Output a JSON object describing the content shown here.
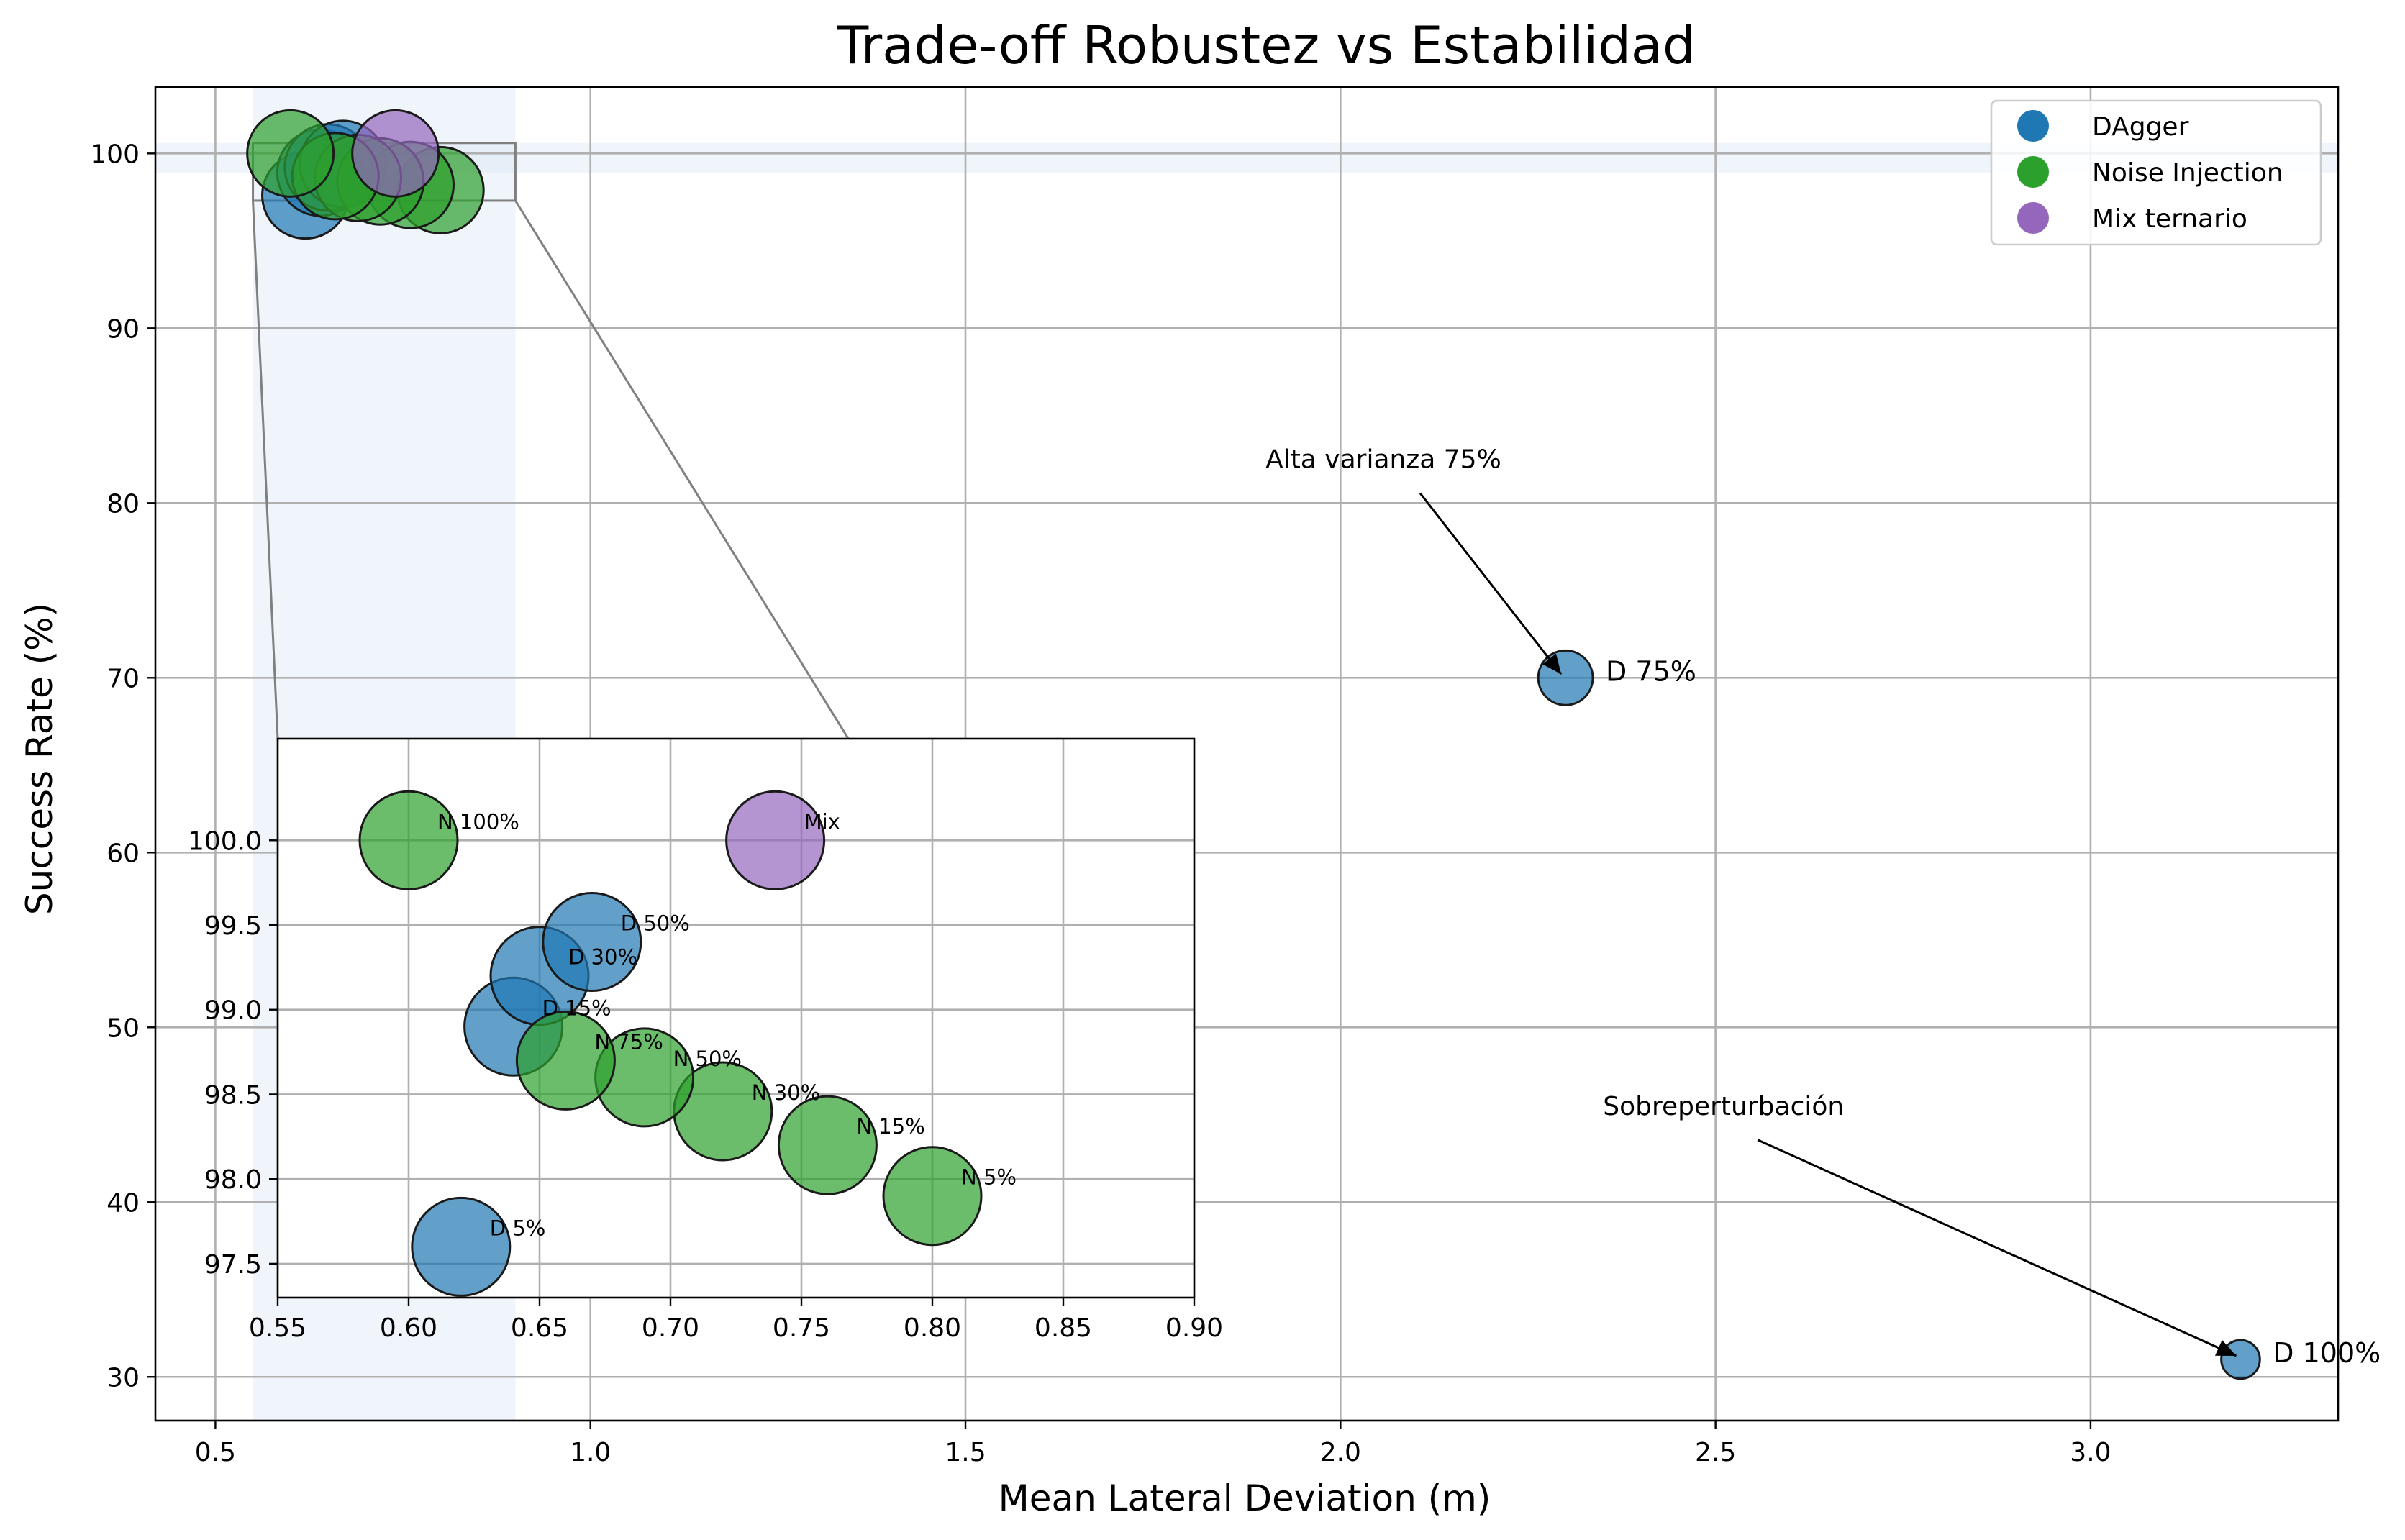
{
  "chart_data": {
    "type": "scatter",
    "title": "Trade-off Robustez vs Estabilidad",
    "xlabel": "Mean Lateral Deviation (m)",
    "ylabel": "Success Rate (%)",
    "xlim": [
      0.42,
      3.33
    ],
    "ylim": [
      27.5,
      103.8
    ],
    "xticks": [
      "0.5",
      "1.0",
      "1.5",
      "2.0",
      "2.5",
      "3.0"
    ],
    "xtick_values": [
      0.5,
      1.0,
      1.5,
      2.0,
      2.5,
      3.0
    ],
    "yticks": [
      "30",
      "40",
      "50",
      "60",
      "70",
      "80",
      "90",
      "100"
    ],
    "ytick_values": [
      30,
      40,
      50,
      60,
      70,
      80,
      90,
      100
    ],
    "grid": true,
    "legend_position": "top-right",
    "legend": [
      {
        "name": "DAgger",
        "color": "#1f77b4"
      },
      {
        "name": "Noise Injection",
        "color": "#2ca02c"
      },
      {
        "name": "Mix ternario",
        "color": "#9467bd"
      }
    ],
    "series": [
      {
        "name": "DAgger",
        "color": "#1f77b4",
        "points": [
          {
            "label": "D 5%",
            "x": 0.62,
            "y": 97.6,
            "size": 1.0
          },
          {
            "label": "D 15%",
            "x": 0.64,
            "y": 98.9,
            "size": 1.0
          },
          {
            "label": "D 30%",
            "x": 0.65,
            "y": 99.2,
            "size": 1.0
          },
          {
            "label": "D 50%",
            "x": 0.67,
            "y": 99.4,
            "size": 1.0
          },
          {
            "label": "D 75%",
            "x": 2.3,
            "y": 70,
            "size": 0.4
          },
          {
            "label": "D 100%",
            "x": 3.2,
            "y": 31,
            "size": 0.2
          }
        ]
      },
      {
        "name": "Noise Injection",
        "color": "#2ca02c",
        "points": [
          {
            "label": "N 5%",
            "x": 0.8,
            "y": 97.9,
            "size": 1.0
          },
          {
            "label": "N 15%",
            "x": 0.76,
            "y": 98.2,
            "size": 1.0
          },
          {
            "label": "N 30%",
            "x": 0.72,
            "y": 98.4,
            "size": 1.0
          },
          {
            "label": "N 50%",
            "x": 0.69,
            "y": 98.6,
            "size": 1.0
          },
          {
            "label": "N 75%",
            "x": 0.66,
            "y": 98.7,
            "size": 1.0
          },
          {
            "label": "N 100%",
            "x": 0.6,
            "y": 100,
            "size": 1.0
          }
        ]
      },
      {
        "name": "Mix ternario",
        "color": "#9467bd",
        "points": [
          {
            "label": "Mix",
            "x": 0.74,
            "y": 100,
            "size": 1.0
          }
        ]
      }
    ],
    "highlight_bands": {
      "x": [
        0.55,
        0.9
      ],
      "y": [
        98.9,
        100.6
      ]
    },
    "annotations": [
      {
        "text": "Alta varianza 75%",
        "text_x": 1.9,
        "text_y": 82,
        "target_x": 2.3,
        "target_y": 70
      },
      {
        "text": "Sobreperturbación",
        "text_x": 2.35,
        "text_y": 45,
        "target_x": 3.2,
        "target_y": 31
      }
    ],
    "inset": {
      "xlim": [
        0.55,
        0.9
      ],
      "ylim": [
        97.3,
        100.6
      ],
      "xticks": [
        "0.55",
        "0.60",
        "0.65",
        "0.70",
        "0.75",
        "0.80",
        "0.85",
        "0.90"
      ],
      "xtick_values": [
        0.55,
        0.6,
        0.65,
        0.7,
        0.75,
        0.8,
        0.85,
        0.9
      ],
      "yticks": [
        "97.5",
        "98.0",
        "98.5",
        "99.0",
        "99.5",
        "100.0"
      ],
      "ytick_values": [
        97.5,
        98.0,
        98.5,
        99.0,
        99.5,
        100.0
      ],
      "zoom_box": {
        "x": [
          0.55,
          0.9
        ],
        "y": [
          97.3,
          100.6
        ]
      }
    }
  }
}
